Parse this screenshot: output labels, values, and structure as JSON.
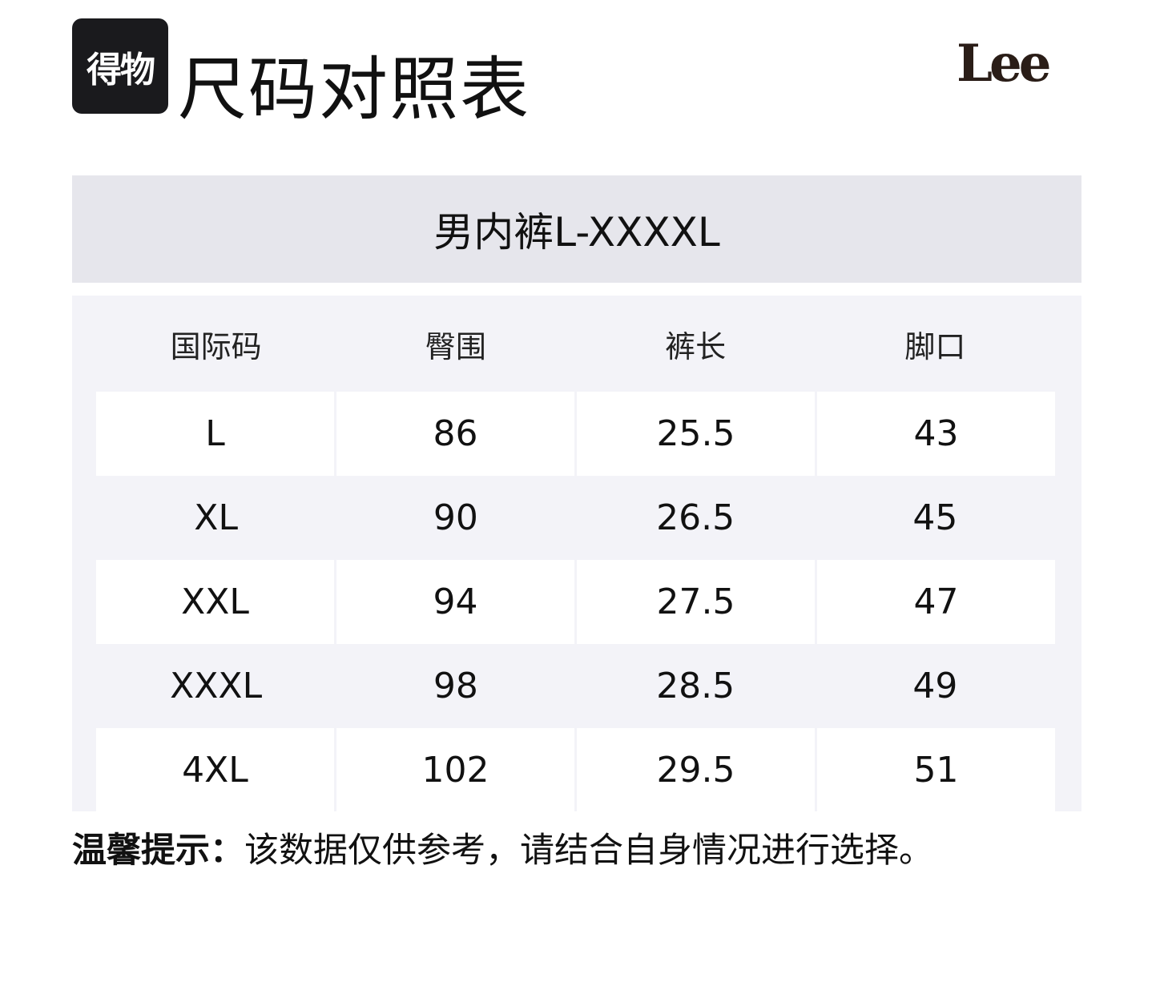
{
  "logo_text": "得物",
  "title": "尺码对照表",
  "brand": "Lee",
  "table": {
    "caption": "男内裤L-XXXXL",
    "headers": [
      "国际码",
      "臀围",
      "裤长",
      "脚口"
    ],
    "rows": [
      [
        "L",
        "86",
        "25.5",
        "43"
      ],
      [
        "XL",
        "90",
        "26.5",
        "45"
      ],
      [
        "XXL",
        "94",
        "27.5",
        "47"
      ],
      [
        "XXXL",
        "98",
        "28.5",
        "49"
      ],
      [
        "4XL",
        "102",
        "29.5",
        "51"
      ]
    ]
  },
  "tip": {
    "label": "温馨提示：",
    "text": "该数据仅供参考，请结合自身情况进行选择。"
  }
}
